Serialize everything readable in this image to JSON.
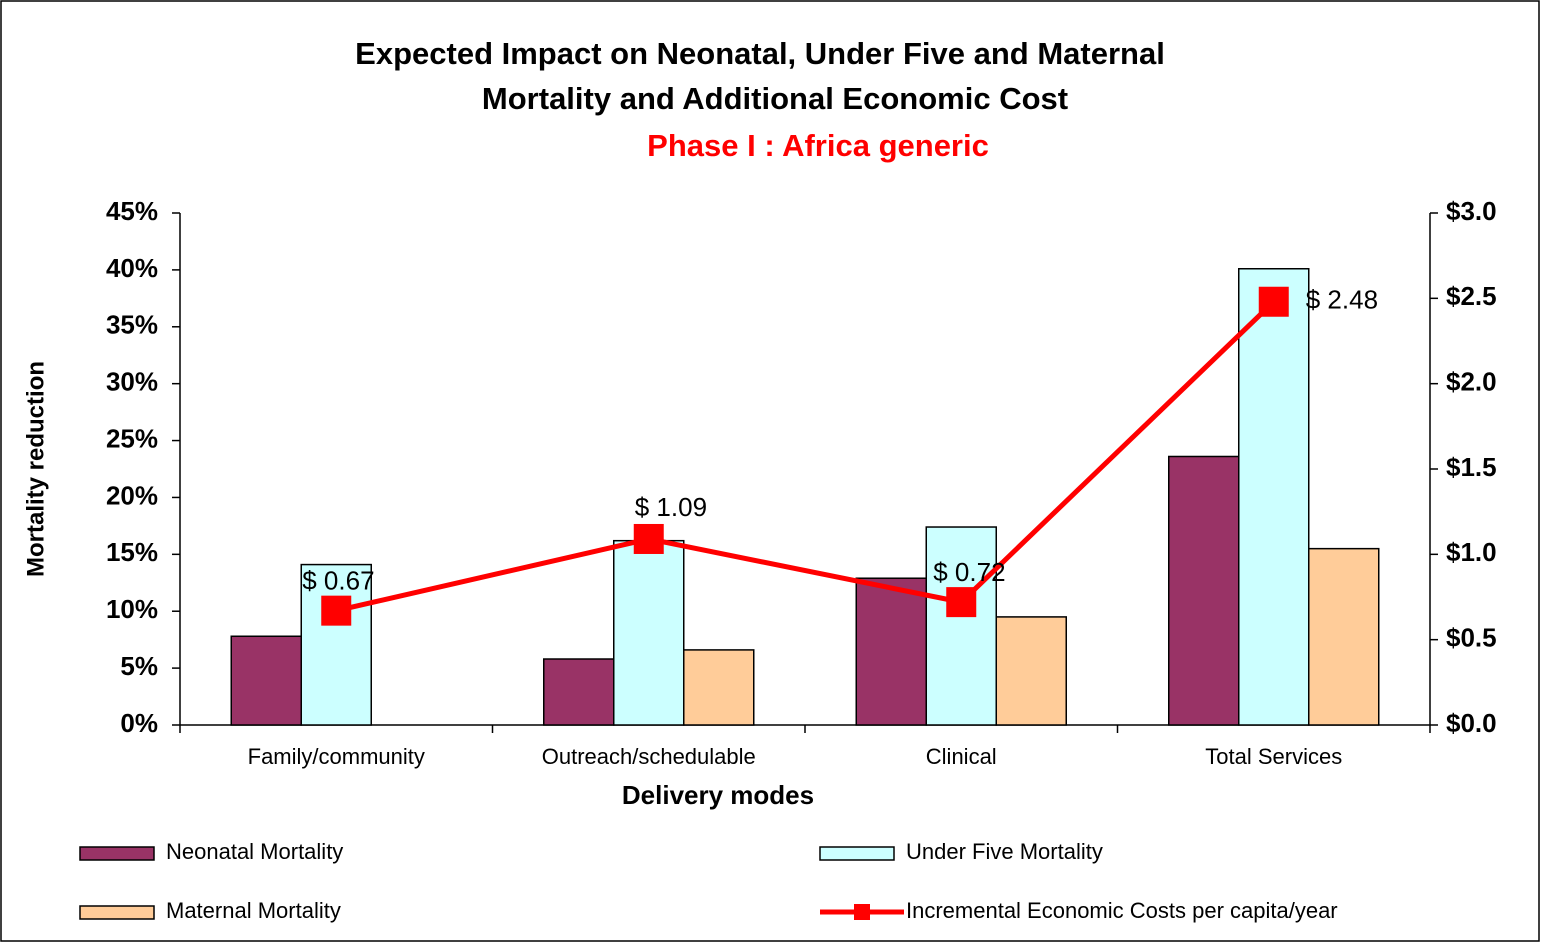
{
  "chart_data": {
    "type": "bar-line",
    "title": [
      "Expected Impact on Neonatal, Under Five and Maternal",
      "Mortality and Additional Economic Cost"
    ],
    "subtitle": "Phase I : Africa generic",
    "x_label": "Delivery modes",
    "y_label": "Mortality reduction",
    "categories": [
      "Family/community",
      "Outreach/schedulable",
      "Clinical",
      "Total Services"
    ],
    "series": [
      {
        "name": "Neonatal Mortality",
        "color": "#993366",
        "values": [
          7.8,
          5.8,
          12.9,
          23.6
        ]
      },
      {
        "name": "Under Five Mortality",
        "color": "#ccffff",
        "values": [
          14.1,
          16.2,
          17.4,
          40.1
        ]
      },
      {
        "name": "Maternal Mortality",
        "color": "#ffcc99",
        "values": [
          null,
          6.6,
          9.5,
          15.5
        ]
      },
      {
        "name": "Incremental Economic Costs per capita/year",
        "color": "#ff0000",
        "type": "line",
        "axis": "y2",
        "values": [
          0.67,
          1.09,
          0.72,
          2.48
        ],
        "value_labels": [
          "$ 0.67",
          "$ 1.09",
          "$ 0.72",
          "$ 2.48"
        ]
      }
    ],
    "ylim": [
      0,
      45
    ],
    "yticks": [
      {
        "value": 0,
        "label": "0%"
      },
      {
        "value": 5,
        "label": "5%"
      },
      {
        "value": 10,
        "label": "10%"
      },
      {
        "value": 15,
        "label": "15%"
      },
      {
        "value": 20,
        "label": "20%"
      },
      {
        "value": 25,
        "label": "25%"
      },
      {
        "value": 30,
        "label": "30%"
      },
      {
        "value": 35,
        "label": "35%"
      },
      {
        "value": 40,
        "label": "40%"
      },
      {
        "value": 45,
        "label": "45%"
      }
    ],
    "y2lim": [
      0,
      3
    ],
    "y2ticks": [
      {
        "value": 0,
        "label": "$0.0"
      },
      {
        "value": 0.5,
        "label": "$0.5"
      },
      {
        "value": 1,
        "label": "$1.0"
      },
      {
        "value": 1.5,
        "label": "$1.5"
      },
      {
        "value": 2,
        "label": "$2.0"
      },
      {
        "value": 2.5,
        "label": "$2.5"
      },
      {
        "value": 3,
        "label": "$3.0"
      }
    ],
    "grid": false,
    "legend": "bottom"
  }
}
